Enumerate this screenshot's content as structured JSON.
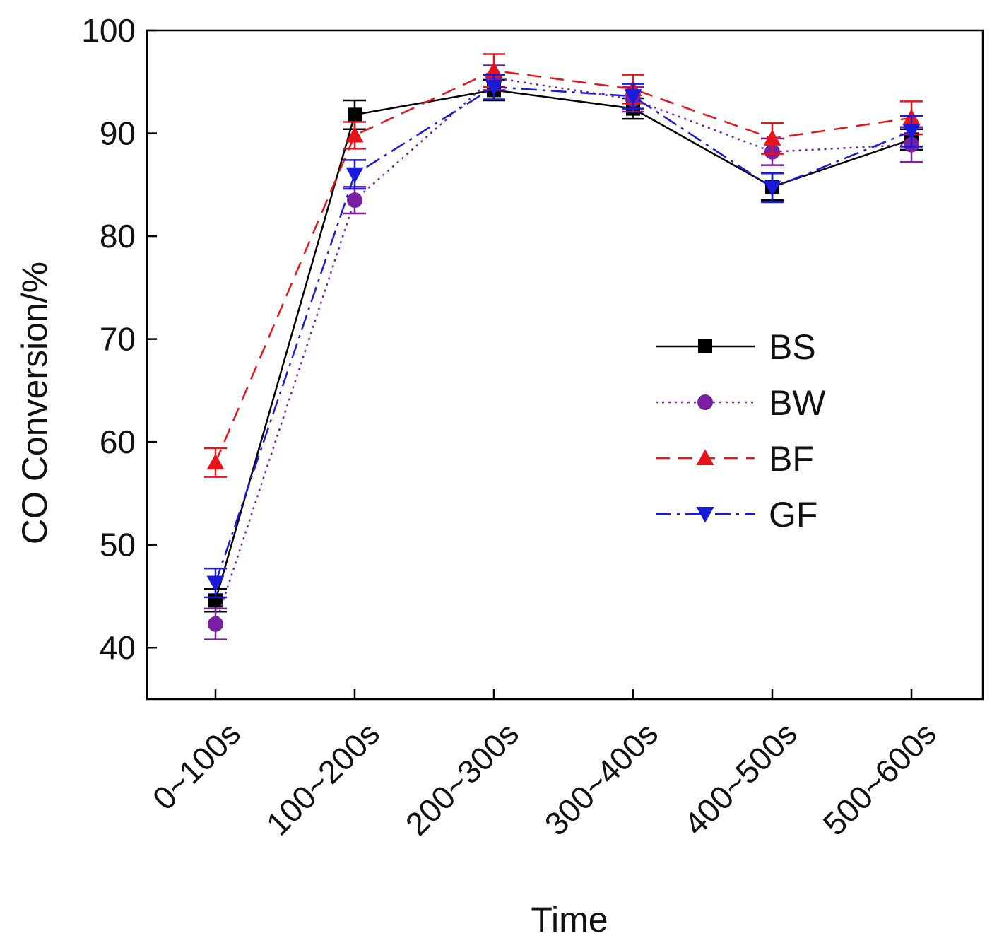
{
  "chart_data": {
    "type": "line",
    "title": "",
    "xlabel": "Time",
    "ylabel": "CO Conversion/%",
    "ylim": [
      35,
      100
    ],
    "yticks": [
      40,
      50,
      60,
      70,
      80,
      90,
      100
    ],
    "categories": [
      "0~100s",
      "100~200s",
      "200~300s",
      "300~400s",
      "400~500s",
      "500~600s"
    ],
    "grid": false,
    "legend_position": "center-right",
    "series": [
      {
        "name": "BS",
        "color": "#000000",
        "line_style": "solid",
        "marker": "square",
        "values": [
          44.6,
          91.8,
          94.2,
          92.4,
          84.8,
          89.4
        ],
        "errors": [
          1.1,
          1.4,
          1.0,
          1.0,
          1.3,
          1.0
        ]
      },
      {
        "name": "BW",
        "color": "#7a1fa2",
        "line_style": "dotted",
        "marker": "circle",
        "values": [
          42.3,
          83.5,
          95.4,
          93.3,
          88.2,
          88.9
        ],
        "errors": [
          1.5,
          1.3,
          1.2,
          1.2,
          1.3,
          1.7
        ]
      },
      {
        "name": "BF",
        "color": "#e8141b",
        "line_style": "dashed",
        "marker": "triangle-up",
        "values": [
          58.0,
          89.8,
          96.1,
          94.3,
          89.5,
          91.5
        ],
        "errors": [
          1.4,
          1.3,
          1.6,
          1.4,
          1.5,
          1.6
        ]
      },
      {
        "name": "GF",
        "color": "#1a1adb",
        "line_style": "dashdot",
        "marker": "triangle-down",
        "values": [
          46.3,
          86.0,
          94.5,
          93.6,
          84.7,
          90.2
        ],
        "errors": [
          1.4,
          1.4,
          1.2,
          1.2,
          1.4,
          1.5
        ]
      }
    ]
  }
}
